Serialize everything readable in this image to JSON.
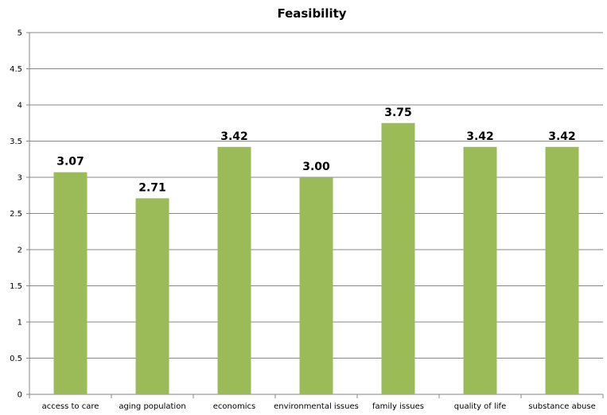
{
  "chart_data": {
    "type": "bar",
    "title": "Feasibility",
    "xlabel": "",
    "ylabel": "",
    "categories": [
      "access to care",
      "aging population",
      "economics",
      "environmental issues",
      "family issues",
      "quality of life",
      "substance abuse"
    ],
    "values": [
      3.07,
      2.71,
      3.42,
      3.0,
      3.75,
      3.42,
      3.42
    ],
    "data_labels": [
      "3.07",
      "2.71",
      "3.42",
      "3.00",
      "3.75",
      "3.42",
      "3.42"
    ],
    "ylim": [
      0,
      5
    ],
    "yticks": [
      "0",
      "0.5",
      "1",
      "1.5",
      "2",
      "2.5",
      "3",
      "3.5",
      "4",
      "4.5",
      "5"
    ],
    "grid": true,
    "bar_color": "#9BBB59",
    "grid_color": "#878787",
    "legend": "none"
  }
}
